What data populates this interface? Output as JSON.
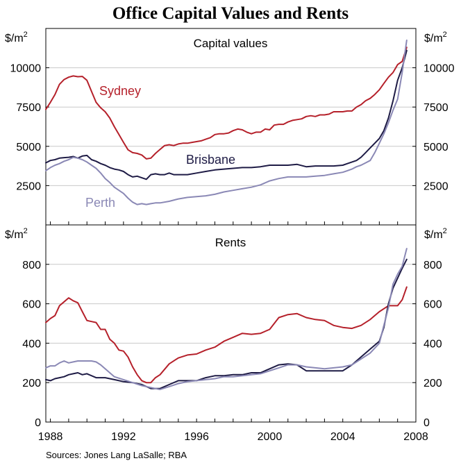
{
  "title": "Office Capital Values and Rents",
  "source": "Sources: Jones Lang LaSalle; RBA",
  "x_axis": {
    "min": 1987.75,
    "max": 2008.0,
    "ticks": [
      "1988",
      "1992",
      "1996",
      "2000",
      "2004",
      "2008"
    ],
    "tick_values": [
      1988,
      1992,
      1996,
      2000,
      2004,
      2008
    ]
  },
  "colors": {
    "Sydney": "#b5202a",
    "Brisbane": "#1e1b45",
    "Perth": "#8a88b5"
  },
  "chart_data": [
    {
      "type": "line",
      "title": "Capital values",
      "unit_left": "$/m",
      "unit_right": "$/m",
      "unit_sup": "2",
      "ylim": [
        0,
        12500
      ],
      "yticks": [
        2500,
        5000,
        7500,
        10000
      ],
      "ytick_labels": [
        "2500",
        "5000",
        "7500",
        "10000"
      ],
      "series": [
        {
          "name": "Sydney",
          "label": "Sydney",
          "x": [
            1987.75,
            1988.0,
            1988.25,
            1988.5,
            1988.75,
            1989.0,
            1989.25,
            1989.5,
            1989.75,
            1990.0,
            1990.25,
            1990.5,
            1990.75,
            1991.0,
            1991.25,
            1991.5,
            1991.75,
            1992.0,
            1992.25,
            1992.5,
            1992.75,
            1993.0,
            1993.25,
            1993.5,
            1993.75,
            1994.0,
            1994.25,
            1994.5,
            1994.75,
            1995.0,
            1995.25,
            1995.5,
            1995.75,
            1996.0,
            1996.25,
            1996.5,
            1996.75,
            1997.0,
            1997.25,
            1997.5,
            1997.75,
            1998.0,
            1998.25,
            1998.5,
            1998.75,
            1999.0,
            1999.25,
            1999.5,
            1999.75,
            2000.0,
            2000.25,
            2000.5,
            2000.75,
            2001.0,
            2001.25,
            2001.5,
            2001.75,
            2002.0,
            2002.25,
            2002.5,
            2002.75,
            2003.0,
            2003.25,
            2003.5,
            2003.75,
            2004.0,
            2004.25,
            2004.5,
            2004.75,
            2005.0,
            2005.25,
            2005.5,
            2005.75,
            2006.0,
            2006.25,
            2006.5,
            2006.75,
            2007.0,
            2007.25,
            2007.5
          ],
          "y": [
            7350,
            7800,
            8300,
            8950,
            9250,
            9400,
            9480,
            9430,
            9450,
            9200,
            8500,
            7800,
            7450,
            7200,
            6800,
            6250,
            5750,
            5250,
            4780,
            4600,
            4550,
            4450,
            4200,
            4250,
            4550,
            4800,
            5050,
            5100,
            5050,
            5150,
            5200,
            5200,
            5250,
            5300,
            5350,
            5450,
            5550,
            5750,
            5800,
            5800,
            5850,
            6000,
            6100,
            6050,
            5900,
            5800,
            5900,
            5900,
            6100,
            6050,
            6350,
            6400,
            6400,
            6550,
            6650,
            6700,
            6750,
            6900,
            6950,
            6900,
            7000,
            7000,
            7050,
            7200,
            7200,
            7200,
            7250,
            7250,
            7500,
            7650,
            7900,
            8050,
            8300,
            8600,
            9000,
            9400,
            9700,
            10200,
            10400,
            11300
          ]
        },
        {
          "name": "Brisbane",
          "label": "Brisbane",
          "x": [
            1987.75,
            1988.0,
            1988.25,
            1988.5,
            1988.75,
            1989.0,
            1989.25,
            1989.5,
            1989.75,
            1990.0,
            1990.25,
            1990.5,
            1990.75,
            1991.0,
            1991.25,
            1991.5,
            1991.75,
            1992.0,
            1992.25,
            1992.5,
            1992.75,
            1993.0,
            1993.25,
            1993.5,
            1993.75,
            1994.0,
            1994.25,
            1994.5,
            1994.75,
            1995.0,
            1995.5,
            1996.0,
            1996.5,
            1997.0,
            1997.5,
            1998.0,
            1998.5,
            1999.0,
            1999.5,
            2000.0,
            2000.5,
            2001.0,
            2001.5,
            2002.0,
            2002.5,
            2003.0,
            2003.5,
            2004.0,
            2004.25,
            2004.5,
            2004.75,
            2005.0,
            2005.25,
            2005.5,
            2005.75,
            2006.0,
            2006.25,
            2006.5,
            2006.75,
            2007.0,
            2007.25,
            2007.5
          ],
          "y": [
            3950,
            4100,
            4150,
            4250,
            4280,
            4300,
            4350,
            4250,
            4380,
            4420,
            4150,
            4050,
            3900,
            3800,
            3650,
            3550,
            3500,
            3400,
            3200,
            3050,
            3100,
            3000,
            2900,
            3200,
            3250,
            3200,
            3200,
            3300,
            3200,
            3200,
            3200,
            3300,
            3400,
            3500,
            3550,
            3600,
            3650,
            3650,
            3700,
            3800,
            3800,
            3800,
            3850,
            3700,
            3750,
            3750,
            3750,
            3800,
            3900,
            4000,
            4100,
            4300,
            4600,
            4900,
            5200,
            5500,
            6000,
            6800,
            7900,
            9200,
            10000,
            11100
          ]
        },
        {
          "name": "Perth",
          "label": "Perth",
          "x": [
            1987.75,
            1988.0,
            1988.25,
            1988.5,
            1988.75,
            1989.0,
            1989.25,
            1989.5,
            1989.75,
            1990.0,
            1990.25,
            1990.5,
            1990.75,
            1991.0,
            1991.25,
            1991.5,
            1991.75,
            1992.0,
            1992.25,
            1992.5,
            1992.75,
            1993.0,
            1993.25,
            1993.5,
            1993.75,
            1994.0,
            1994.5,
            1995.0,
            1995.5,
            1996.0,
            1996.5,
            1997.0,
            1997.5,
            1998.0,
            1998.5,
            1999.0,
            1999.5,
            2000.0,
            2000.5,
            2001.0,
            2001.5,
            2002.0,
            2002.5,
            2003.0,
            2003.5,
            2004.0,
            2004.25,
            2004.5,
            2004.75,
            2005.0,
            2005.25,
            2005.5,
            2005.75,
            2006.0,
            2006.25,
            2006.5,
            2006.75,
            2007.0,
            2007.25,
            2007.5
          ],
          "y": [
            3450,
            3650,
            3800,
            3900,
            4050,
            4150,
            4300,
            4250,
            4150,
            4000,
            3800,
            3600,
            3300,
            2950,
            2700,
            2400,
            2200,
            2000,
            1700,
            1450,
            1300,
            1350,
            1300,
            1350,
            1400,
            1400,
            1500,
            1650,
            1750,
            1800,
            1850,
            1950,
            2100,
            2200,
            2300,
            2400,
            2550,
            2800,
            2950,
            3050,
            3050,
            3050,
            3100,
            3150,
            3250,
            3350,
            3450,
            3550,
            3700,
            3800,
            3950,
            4100,
            4600,
            5200,
            5800,
            6500,
            7300,
            8000,
            9700,
            11750
          ]
        }
      ]
    },
    {
      "type": "line",
      "title": "Rents",
      "unit_left": "$/m",
      "unit_right": "$/m",
      "unit_sup": "2",
      "ylim": [
        0,
        1000
      ],
      "yticks": [
        0,
        200,
        400,
        600,
        800
      ],
      "ytick_labels": [
        "0",
        "200",
        "400",
        "600",
        "800"
      ],
      "series": [
        {
          "name": "Sydney",
          "x": [
            1987.75,
            1988.0,
            1988.25,
            1988.5,
            1988.75,
            1989.0,
            1989.25,
            1989.5,
            1989.75,
            1990.0,
            1990.25,
            1990.5,
            1990.75,
            1991.0,
            1991.25,
            1991.5,
            1991.75,
            1992.0,
            1992.25,
            1992.5,
            1992.75,
            1993.0,
            1993.25,
            1993.5,
            1993.75,
            1994.0,
            1994.5,
            1995.0,
            1995.5,
            1996.0,
            1996.5,
            1997.0,
            1997.5,
            1998.0,
            1998.5,
            1999.0,
            1999.5,
            2000.0,
            2000.5,
            2001.0,
            2001.5,
            2002.0,
            2002.5,
            2003.0,
            2003.5,
            2004.0,
            2004.5,
            2005.0,
            2005.5,
            2006.0,
            2006.5,
            2007.0,
            2007.25,
            2007.5
          ],
          "y": [
            505,
            525,
            540,
            590,
            610,
            630,
            615,
            605,
            560,
            515,
            510,
            505,
            470,
            470,
            420,
            400,
            365,
            360,
            330,
            280,
            240,
            210,
            200,
            200,
            225,
            240,
            295,
            325,
            340,
            345,
            365,
            380,
            410,
            430,
            450,
            445,
            450,
            470,
            530,
            545,
            550,
            530,
            520,
            515,
            490,
            480,
            475,
            490,
            520,
            560,
            590,
            590,
            620,
            685
          ]
        },
        {
          "name": "Brisbane",
          "x": [
            1987.75,
            1988.0,
            1988.25,
            1988.5,
            1988.75,
            1989.0,
            1989.25,
            1989.5,
            1989.75,
            1990.0,
            1990.5,
            1991.0,
            1991.5,
            1992.0,
            1992.5,
            1993.0,
            1993.5,
            1994.0,
            1994.5,
            1995.0,
            1995.5,
            1996.0,
            1996.5,
            1997.0,
            1997.5,
            1998.0,
            1998.5,
            1999.0,
            1999.5,
            2000.0,
            2000.5,
            2001.0,
            2001.5,
            2002.0,
            2002.5,
            2003.0,
            2003.5,
            2004.0,
            2004.5,
            2005.0,
            2005.5,
            2006.0,
            2006.25,
            2006.5,
            2006.75,
            2007.0,
            2007.25,
            2007.5
          ],
          "y": [
            215,
            210,
            220,
            225,
            230,
            240,
            245,
            250,
            240,
            245,
            225,
            225,
            215,
            205,
            200,
            190,
            170,
            170,
            190,
            210,
            210,
            210,
            225,
            235,
            235,
            240,
            240,
            250,
            250,
            270,
            290,
            295,
            290,
            260,
            260,
            260,
            260,
            260,
            290,
            330,
            370,
            410,
            480,
            600,
            680,
            730,
            780,
            825
          ]
        },
        {
          "name": "Perth",
          "x": [
            1987.75,
            1988.0,
            1988.25,
            1988.5,
            1988.75,
            1989.0,
            1989.25,
            1989.5,
            1989.75,
            1990.0,
            1990.25,
            1990.5,
            1990.75,
            1991.0,
            1991.5,
            1992.0,
            1992.5,
            1993.0,
            1993.5,
            1994.0,
            1994.5,
            1995.0,
            1995.5,
            1996.0,
            1996.5,
            1997.0,
            1997.5,
            1998.0,
            1998.5,
            1999.0,
            1999.5,
            2000.0,
            2000.5,
            2001.0,
            2001.5,
            2002.0,
            2002.5,
            2003.0,
            2003.5,
            2004.0,
            2004.5,
            2005.0,
            2005.5,
            2006.0,
            2006.25,
            2006.5,
            2006.75,
            2007.0,
            2007.25,
            2007.5
          ],
          "y": [
            275,
            285,
            285,
            300,
            310,
            300,
            305,
            310,
            310,
            310,
            310,
            305,
            290,
            270,
            230,
            215,
            200,
            185,
            175,
            165,
            180,
            195,
            205,
            210,
            215,
            220,
            230,
            230,
            235,
            240,
            245,
            260,
            275,
            290,
            290,
            280,
            275,
            270,
            275,
            280,
            290,
            320,
            350,
            400,
            490,
            580,
            700,
            750,
            790,
            880
          ]
        }
      ]
    }
  ]
}
